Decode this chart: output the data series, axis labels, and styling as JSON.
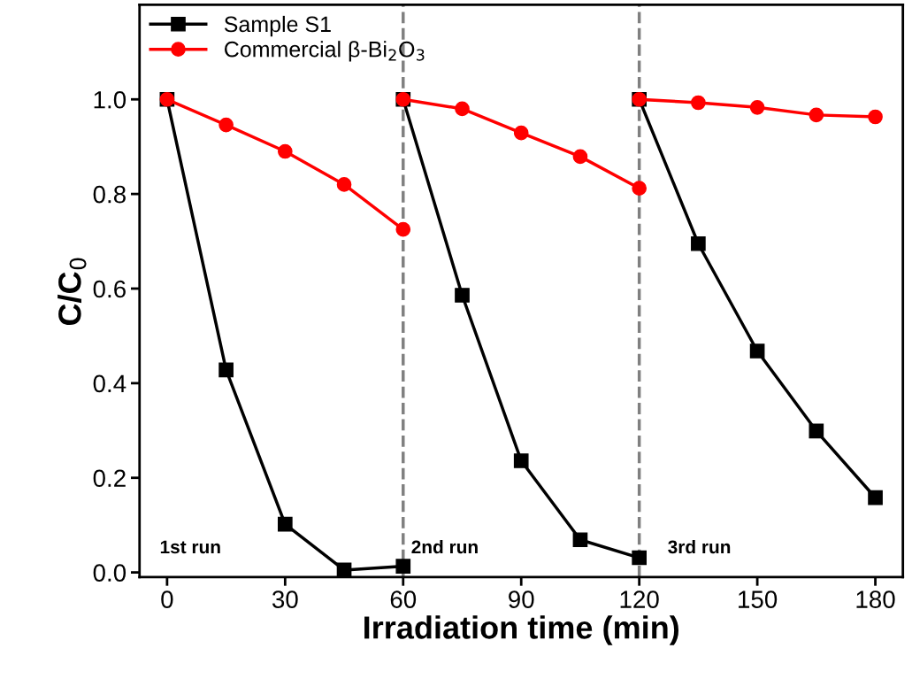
{
  "chart_data": {
    "type": "line",
    "xlabel": "Irradiation time (min)",
    "ylabel": "C/C$_{0}$",
    "series": [
      {
        "name": "Sample S1",
        "color": "#000000",
        "marker": "square",
        "x": [
          0,
          15,
          30,
          45,
          60
        ],
        "values": [
          1.0,
          0.428,
          0.102,
          0.005,
          0.013
        ]
      },
      {
        "name": "Commercial β-Bi$_{2}$O$_{3}$",
        "color": "#ff0000",
        "marker": "circle",
        "x": [
          0,
          15,
          30,
          45,
          60
        ],
        "values": [
          1.0,
          0.946,
          0.89,
          0.82,
          0.725
        ]
      },
      {
        "color": "#000000",
        "marker": "square",
        "x": [
          60,
          75,
          90,
          105,
          120
        ],
        "values": [
          1.0,
          0.586,
          0.236,
          0.069,
          0.031
        ]
      },
      {
        "color": "#ff0000",
        "marker": "circle",
        "x": [
          60,
          75,
          90,
          105,
          120
        ],
        "values": [
          1.0,
          0.98,
          0.929,
          0.879,
          0.812
        ]
      },
      {
        "color": "#000000",
        "marker": "square",
        "x": [
          120,
          135,
          150,
          165,
          180
        ],
        "values": [
          1.0,
          0.695,
          0.468,
          0.299,
          0.158
        ]
      },
      {
        "color": "#ff0000",
        "marker": "circle",
        "x": [
          120,
          135,
          150,
          165,
          180
        ],
        "values": [
          1.0,
          0.993,
          0.983,
          0.967,
          0.963
        ]
      }
    ],
    "xlim": [
      -7,
      187
    ],
    "ylim": [
      -0.01,
      1.2
    ],
    "xticks": [
      0,
      30,
      60,
      90,
      120,
      150,
      180
    ],
    "yticks": [
      {
        "value": 0,
        "label": "0.0"
      },
      {
        "value": 0.2,
        "label": "0.2"
      },
      {
        "value": 0.4,
        "label": "0.4"
      },
      {
        "value": 0.6,
        "label": "0.6"
      },
      {
        "value": 0.8,
        "label": "0.8"
      },
      {
        "value": 1.0,
        "label": "1.0"
      }
    ],
    "ref_lines": [
      {
        "axis": "x",
        "value": 60,
        "color": "#808080",
        "line_style": "dashed"
      },
      {
        "axis": "x",
        "value": 120,
        "color": "#808080",
        "line_style": "dashed"
      }
    ],
    "annotations": [
      "1st run",
      "2nd run",
      "3rd run"
    ],
    "legend": "top left",
    "grid": false
  }
}
